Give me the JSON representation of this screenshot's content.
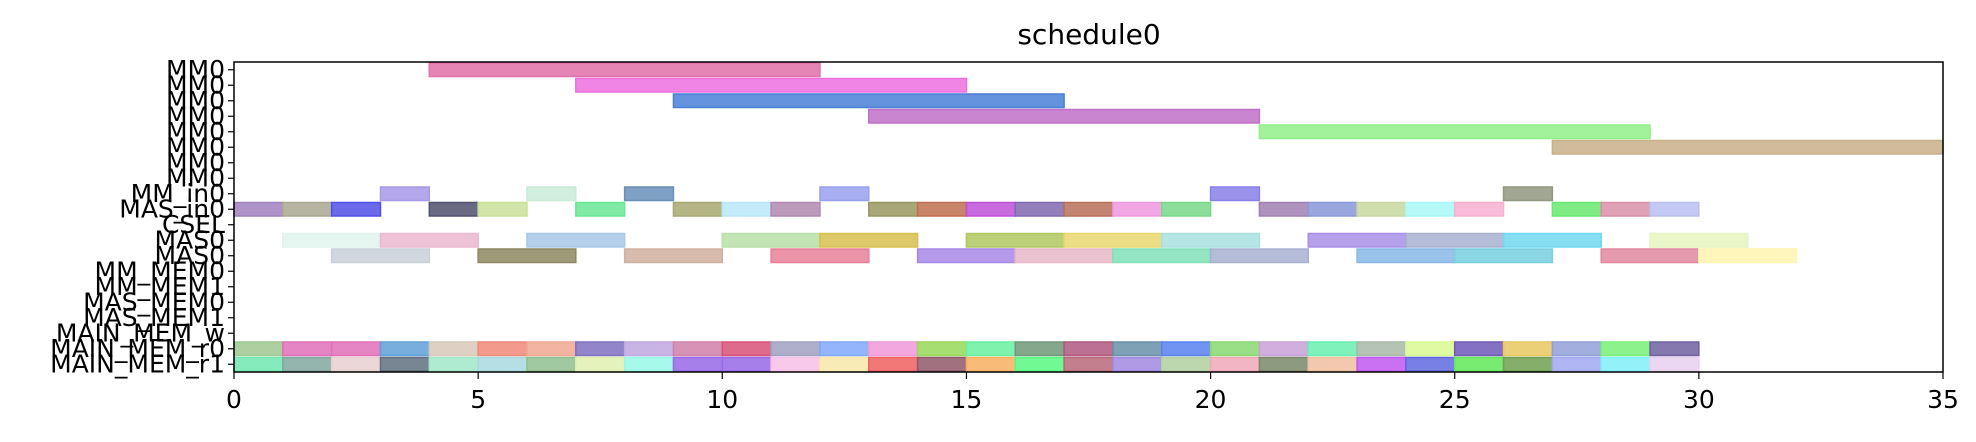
{
  "chart_data": {
    "type": "gantt",
    "title": "schedule0",
    "xlabel": "",
    "ylabel": "",
    "xlim": [
      0,
      35
    ],
    "x_ticks": [
      0,
      5,
      10,
      15,
      20,
      25,
      30,
      35
    ],
    "grid": false,
    "rows": [
      "MM0",
      "MM0",
      "MM0",
      "MM0",
      "MM0",
      "MM0",
      "MM0",
      "MM0",
      "MM_in0",
      "MAS_in0",
      "CSEL",
      "MAS0",
      "MAS0",
      "MM_MEM0",
      "MM_MEM1",
      "MAS_MEM0",
      "MAS_MEM1",
      "MAIN_MEM_w",
      "MAIN_MEM_r0",
      "MAIN_MEM_r1"
    ],
    "bars": [
      {
        "row": 0,
        "start": 4,
        "end": 12,
        "color": "#e070a8"
      },
      {
        "row": 1,
        "start": 7,
        "end": 15,
        "color": "#ee70e0"
      },
      {
        "row": 2,
        "start": 9,
        "end": 17,
        "color": "#4a7fd6"
      },
      {
        "row": 3,
        "start": 13,
        "end": 21,
        "color": "#c070c8"
      },
      {
        "row": 4,
        "start": 21,
        "end": 29,
        "color": "#90f088"
      },
      {
        "row": 5,
        "start": 27,
        "end": 35,
        "color": "#c8b088"
      },
      {
        "row": 8,
        "start": 3,
        "end": 4,
        "color": "#a898e8"
      },
      {
        "row": 8,
        "start": 6,
        "end": 7,
        "color": "#c8ecd8"
      },
      {
        "row": 8,
        "start": 8,
        "end": 9,
        "color": "#6890b8"
      },
      {
        "row": 8,
        "start": 12,
        "end": 13,
        "color": "#98a0f0"
      },
      {
        "row": 8,
        "start": 20,
        "end": 21,
        "color": "#8880e8"
      },
      {
        "row": 8,
        "start": 26,
        "end": 27,
        "color": "#909880"
      },
      {
        "row": 9,
        "start": 0,
        "end": 1,
        "color": "#a080c0"
      },
      {
        "row": 9,
        "start": 1,
        "end": 2,
        "color": "#a8a890"
      },
      {
        "row": 9,
        "start": 2,
        "end": 3,
        "color": "#5050e8"
      },
      {
        "row": 9,
        "start": 4,
        "end": 5,
        "color": "#505070"
      },
      {
        "row": 9,
        "start": 5,
        "end": 6,
        "color": "#c8e098"
      },
      {
        "row": 9,
        "start": 7,
        "end": 8,
        "color": "#68e898"
      },
      {
        "row": 9,
        "start": 9,
        "end": 10,
        "color": "#a8a870"
      },
      {
        "row": 9,
        "start": 10,
        "end": 11,
        "color": "#b8e8f8"
      },
      {
        "row": 9,
        "start": 11,
        "end": 12,
        "color": "#b088b0"
      },
      {
        "row": 9,
        "start": 13,
        "end": 14,
        "color": "#989860"
      },
      {
        "row": 9,
        "start": 14,
        "end": 15,
        "color": "#c07050"
      },
      {
        "row": 9,
        "start": 15,
        "end": 16,
        "color": "#c050d8"
      },
      {
        "row": 9,
        "start": 16,
        "end": 17,
        "color": "#8068b0"
      },
      {
        "row": 9,
        "start": 17,
        "end": 18,
        "color": "#b87058"
      },
      {
        "row": 9,
        "start": 18,
        "end": 19,
        "color": "#f098e0"
      },
      {
        "row": 9,
        "start": 19,
        "end": 20,
        "color": "#78d888"
      },
      {
        "row": 9,
        "start": 21,
        "end": 22,
        "color": "#a080b0"
      },
      {
        "row": 9,
        "start": 22,
        "end": 23,
        "color": "#8898d8"
      },
      {
        "row": 9,
        "start": 23,
        "end": 24,
        "color": "#c8d8a0"
      },
      {
        "row": 9,
        "start": 24,
        "end": 25,
        "color": "#a8f8f8"
      },
      {
        "row": 9,
        "start": 25,
        "end": 26,
        "color": "#f8b0d0"
      },
      {
        "row": 9,
        "start": 27,
        "end": 28,
        "color": "#68e870"
      },
      {
        "row": 9,
        "start": 28,
        "end": 29,
        "color": "#d890a8"
      },
      {
        "row": 9,
        "start": 29,
        "end": 30,
        "color": "#b8c0f0"
      },
      {
        "row": 11,
        "start": 1,
        "end": 3,
        "color": "#e0f4ee"
      },
      {
        "row": 11,
        "start": 3,
        "end": 5,
        "color": "#ecb8d0"
      },
      {
        "row": 11,
        "start": 6,
        "end": 8,
        "color": "#a8c8e8"
      },
      {
        "row": 11,
        "start": 10,
        "end": 12,
        "color": "#b8e0a8"
      },
      {
        "row": 11,
        "start": 12,
        "end": 14,
        "color": "#d8c050"
      },
      {
        "row": 11,
        "start": 15,
        "end": 17,
        "color": "#b0c860"
      },
      {
        "row": 11,
        "start": 17,
        "end": 19,
        "color": "#e8d870"
      },
      {
        "row": 11,
        "start": 19,
        "end": 21,
        "color": "#a8e0e0"
      },
      {
        "row": 11,
        "start": 22,
        "end": 24,
        "color": "#a890e8"
      },
      {
        "row": 11,
        "start": 24,
        "end": 26,
        "color": "#a8b0d0"
      },
      {
        "row": 11,
        "start": 26,
        "end": 28,
        "color": "#70d8f0"
      },
      {
        "row": 11,
        "start": 29,
        "end": 31,
        "color": "#e8f4c0"
      },
      {
        "row": 12,
        "start": 2,
        "end": 4,
        "color": "#c8d0d8"
      },
      {
        "row": 12,
        "start": 5,
        "end": 7,
        "color": "#8c8860"
      },
      {
        "row": 12,
        "start": 8,
        "end": 10,
        "color": "#d0b0a0"
      },
      {
        "row": 12,
        "start": 11,
        "end": 13,
        "color": "#e88098"
      },
      {
        "row": 12,
        "start": 14,
        "end": 16,
        "color": "#a888e8"
      },
      {
        "row": 12,
        "start": 16,
        "end": 18,
        "color": "#e8b8c8"
      },
      {
        "row": 12,
        "start": 18,
        "end": 20,
        "color": "#80e0b8"
      },
      {
        "row": 12,
        "start": 20,
        "end": 22,
        "color": "#a8b0d0"
      },
      {
        "row": 12,
        "start": 23,
        "end": 25,
        "color": "#88b8e8"
      },
      {
        "row": 12,
        "start": 25,
        "end": 27,
        "color": "#78d0e0"
      },
      {
        "row": 12,
        "start": 28,
        "end": 30,
        "color": "#e088a0"
      },
      {
        "row": 12,
        "start": 30,
        "end": 32,
        "color": "#fff4b0"
      },
      {
        "row": 18,
        "start": 0,
        "end": 1,
        "color": "#a0c890"
      },
      {
        "row": 18,
        "start": 1,
        "end": 2,
        "color": "#e070b8"
      },
      {
        "row": 18,
        "start": 2,
        "end": 3,
        "color": "#e070b8"
      },
      {
        "row": 18,
        "start": 3,
        "end": 4,
        "color": "#60a0d8"
      },
      {
        "row": 18,
        "start": 4,
        "end": 5,
        "color": "#d8c8b8"
      },
      {
        "row": 18,
        "start": 5,
        "end": 6,
        "color": "#f08878"
      },
      {
        "row": 18,
        "start": 6,
        "end": 7,
        "color": "#f0a890"
      },
      {
        "row": 18,
        "start": 7,
        "end": 8,
        "color": "#8070c0"
      },
      {
        "row": 18,
        "start": 8,
        "end": 9,
        "color": "#c0a8e0"
      },
      {
        "row": 18,
        "start": 9,
        "end": 10,
        "color": "#d080a8"
      },
      {
        "row": 18,
        "start": 10,
        "end": 11,
        "color": "#d85078"
      },
      {
        "row": 18,
        "start": 11,
        "end": 12,
        "color": "#a0a0c0"
      },
      {
        "row": 18,
        "start": 12,
        "end": 13,
        "color": "#80a8f8"
      },
      {
        "row": 18,
        "start": 13,
        "end": 14,
        "color": "#f098d8"
      },
      {
        "row": 18,
        "start": 14,
        "end": 15,
        "color": "#98d858"
      },
      {
        "row": 18,
        "start": 15,
        "end": 16,
        "color": "#68f0a0"
      },
      {
        "row": 18,
        "start": 16,
        "end": 17,
        "color": "#709878"
      },
      {
        "row": 18,
        "start": 17,
        "end": 18,
        "color": "#b05880"
      },
      {
        "row": 18,
        "start": 18,
        "end": 19,
        "color": "#6890a8"
      },
      {
        "row": 18,
        "start": 19,
        "end": 20,
        "color": "#5880f0"
      },
      {
        "row": 18,
        "start": 20,
        "end": 21,
        "color": "#88d870"
      },
      {
        "row": 18,
        "start": 21,
        "end": 22,
        "color": "#c8a0d8"
      },
      {
        "row": 18,
        "start": 22,
        "end": 23,
        "color": "#68f0b0"
      },
      {
        "row": 18,
        "start": 23,
        "end": 24,
        "color": "#a8b8a8"
      },
      {
        "row": 18,
        "start": 24,
        "end": 25,
        "color": "#d8f890"
      },
      {
        "row": 18,
        "start": 25,
        "end": 26,
        "color": "#7058b8"
      },
      {
        "row": 18,
        "start": 26,
        "end": 27,
        "color": "#e8c860"
      },
      {
        "row": 18,
        "start": 27,
        "end": 28,
        "color": "#90a0d8"
      },
      {
        "row": 18,
        "start": 28,
        "end": 29,
        "color": "#78f078"
      },
      {
        "row": 18,
        "start": 29,
        "end": 30,
        "color": "#7060a0"
      },
      {
        "row": 19,
        "start": 0,
        "end": 1,
        "color": "#70e8b0"
      },
      {
        "row": 19,
        "start": 1,
        "end": 2,
        "color": "#80a8a0"
      },
      {
        "row": 19,
        "start": 2,
        "end": 3,
        "color": "#e8d0d0"
      },
      {
        "row": 19,
        "start": 3,
        "end": 4,
        "color": "#607080"
      },
      {
        "row": 19,
        "start": 4,
        "end": 5,
        "color": "#a0e8c8"
      },
      {
        "row": 19,
        "start": 5,
        "end": 6,
        "color": "#a8d8e0"
      },
      {
        "row": 19,
        "start": 6,
        "end": 7,
        "color": "#90c090"
      },
      {
        "row": 19,
        "start": 7,
        "end": 8,
        "color": "#e0f0b0"
      },
      {
        "row": 19,
        "start": 8,
        "end": 9,
        "color": "#98f8e8"
      },
      {
        "row": 19,
        "start": 9,
        "end": 10,
        "color": "#9868e8"
      },
      {
        "row": 19,
        "start": 10,
        "end": 11,
        "color": "#9868e8"
      },
      {
        "row": 19,
        "start": 11,
        "end": 12,
        "color": "#f8c0e8"
      },
      {
        "row": 19,
        "start": 12,
        "end": 13,
        "color": "#f8e8a8"
      },
      {
        "row": 19,
        "start": 13,
        "end": 14,
        "color": "#f06060"
      },
      {
        "row": 19,
        "start": 14,
        "end": 15,
        "color": "#905868"
      },
      {
        "row": 19,
        "start": 15,
        "end": 16,
        "color": "#f8b060"
      },
      {
        "row": 19,
        "start": 16,
        "end": 17,
        "color": "#58f880"
      },
      {
        "row": 19,
        "start": 17,
        "end": 18,
        "color": "#b86878"
      },
      {
        "row": 19,
        "start": 18,
        "end": 19,
        "color": "#a088e0"
      },
      {
        "row": 19,
        "start": 19,
        "end": 20,
        "color": "#b0d0a0"
      },
      {
        "row": 19,
        "start": 20,
        "end": 21,
        "color": "#f0a8b8"
      },
      {
        "row": 19,
        "start": 21,
        "end": 22,
        "color": "#788868"
      },
      {
        "row": 19,
        "start": 22,
        "end": 23,
        "color": "#f0c0a0"
      },
      {
        "row": 19,
        "start": 23,
        "end": 24,
        "color": "#c058f0"
      },
      {
        "row": 19,
        "start": 24,
        "end": 25,
        "color": "#6068e0"
      },
      {
        "row": 19,
        "start": 25,
        "end": 26,
        "color": "#60e858"
      },
      {
        "row": 19,
        "start": 26,
        "end": 27,
        "color": "#70a050"
      },
      {
        "row": 19,
        "start": 27,
        "end": 28,
        "color": "#a0a8f0"
      },
      {
        "row": 19,
        "start": 28,
        "end": 29,
        "color": "#80f0f8"
      },
      {
        "row": 19,
        "start": 29,
        "end": 30,
        "color": "#e8d0f0"
      }
    ]
  }
}
